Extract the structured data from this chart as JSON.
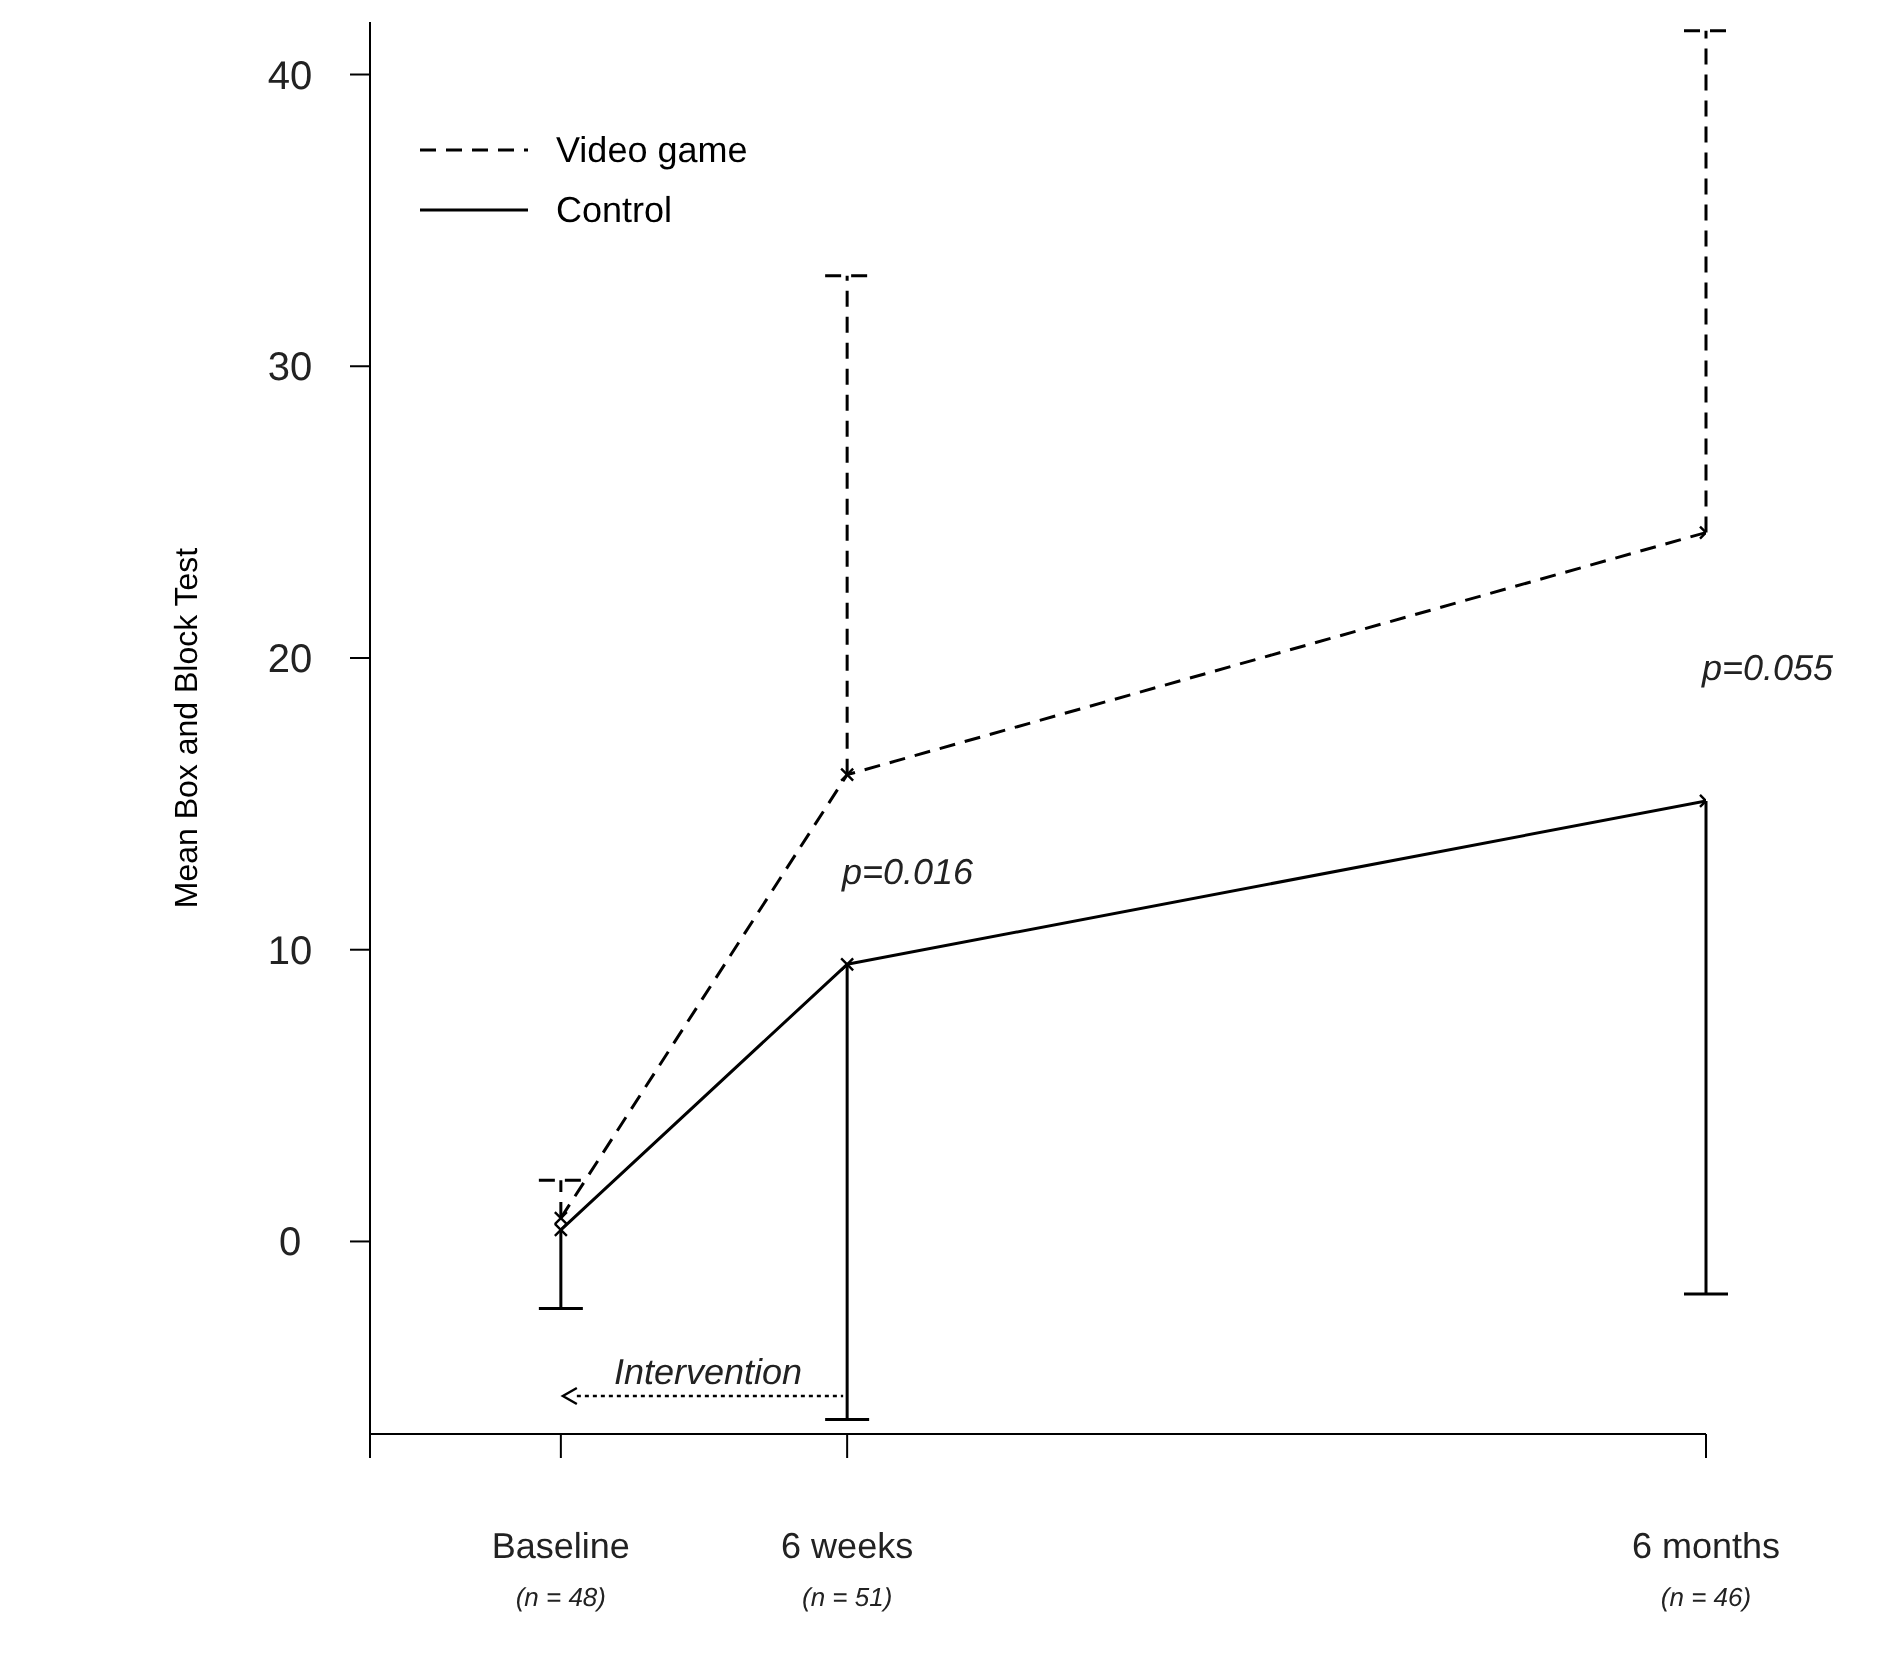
{
  "chart_data": {
    "type": "line",
    "ylabel": "Mean Box and Block Test",
    "categories": [
      null,
      null,
      "Baseline",
      null,
      null,
      "6 weeks",
      null,
      null,
      null,
      null,
      null,
      null,
      null,
      null,
      "6 months"
    ],
    "ylim": [
      -6.6,
      41.8
    ],
    "yticks": [
      0,
      10,
      20,
      30,
      40
    ],
    "series": [
      {
        "name": "Video game",
        "color": "#000000",
        "line_style": "dashed",
        "values": [
          null,
          null,
          0.8,
          null,
          null,
          16.0,
          null,
          null,
          null,
          null,
          null,
          null,
          null,
          null,
          24.3
        ],
        "errors": [
          null,
          null,
          [
            0.8,
            2.1
          ],
          null,
          null,
          [
            16.0,
            33.1
          ],
          null,
          null,
          null,
          null,
          null,
          null,
          null,
          null,
          [
            24.3,
            41.5
          ]
        ]
      },
      {
        "name": "Control",
        "color": "#000000",
        "line_style": "solid",
        "values": [
          null,
          null,
          0.4,
          null,
          null,
          9.5,
          null,
          null,
          null,
          null,
          null,
          null,
          null,
          null,
          15.1
        ],
        "errors": [
          null,
          null,
          [
            -2.3,
            0.4
          ],
          null,
          null,
          [
            -6.1,
            9.5
          ],
          null,
          null,
          null,
          null,
          null,
          null,
          null,
          null,
          [
            -1.8,
            15.1
          ]
        ]
      }
    ],
    "marker": "cross",
    "grid": false,
    "legend": "top left",
    "annotations": [
      "p=0.016",
      "p=0.055",
      "Intervention",
      "(n = 48)",
      "(n = 51)",
      "(n = 46)"
    ]
  }
}
